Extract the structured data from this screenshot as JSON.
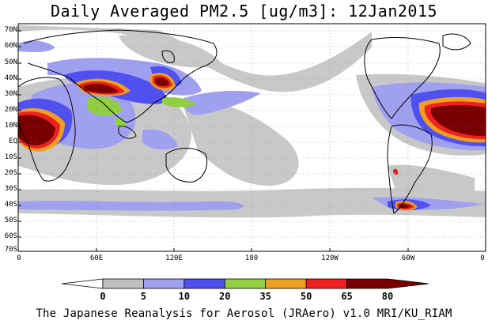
{
  "title": "Daily Averaged PM2.5 [ug/m3]: 12Jan2015",
  "credit": "The Japanese Reanalysis for Aerosol (JRAero) v1.0 MRI/KU_RIAM",
  "lat_labels": [
    "70N",
    "60N",
    "50N",
    "40N",
    "30N",
    "20N",
    "10N",
    "EQ",
    "10S",
    "20S",
    "30S",
    "40S",
    "50S",
    "60S",
    "70S"
  ],
  "lon_labels": [
    "0",
    "60E",
    "120E",
    "180",
    "120W",
    "60W",
    "0"
  ],
  "colorbar": {
    "ticks": [
      "0",
      "5",
      "10",
      "20",
      "35",
      "50",
      "65",
      "80"
    ],
    "colors": [
      "#ffffff",
      "#c0c0c0",
      "#a0a0f0",
      "#5050f0",
      "#90d040",
      "#f0a020",
      "#f02020",
      "#780000"
    ]
  }
}
